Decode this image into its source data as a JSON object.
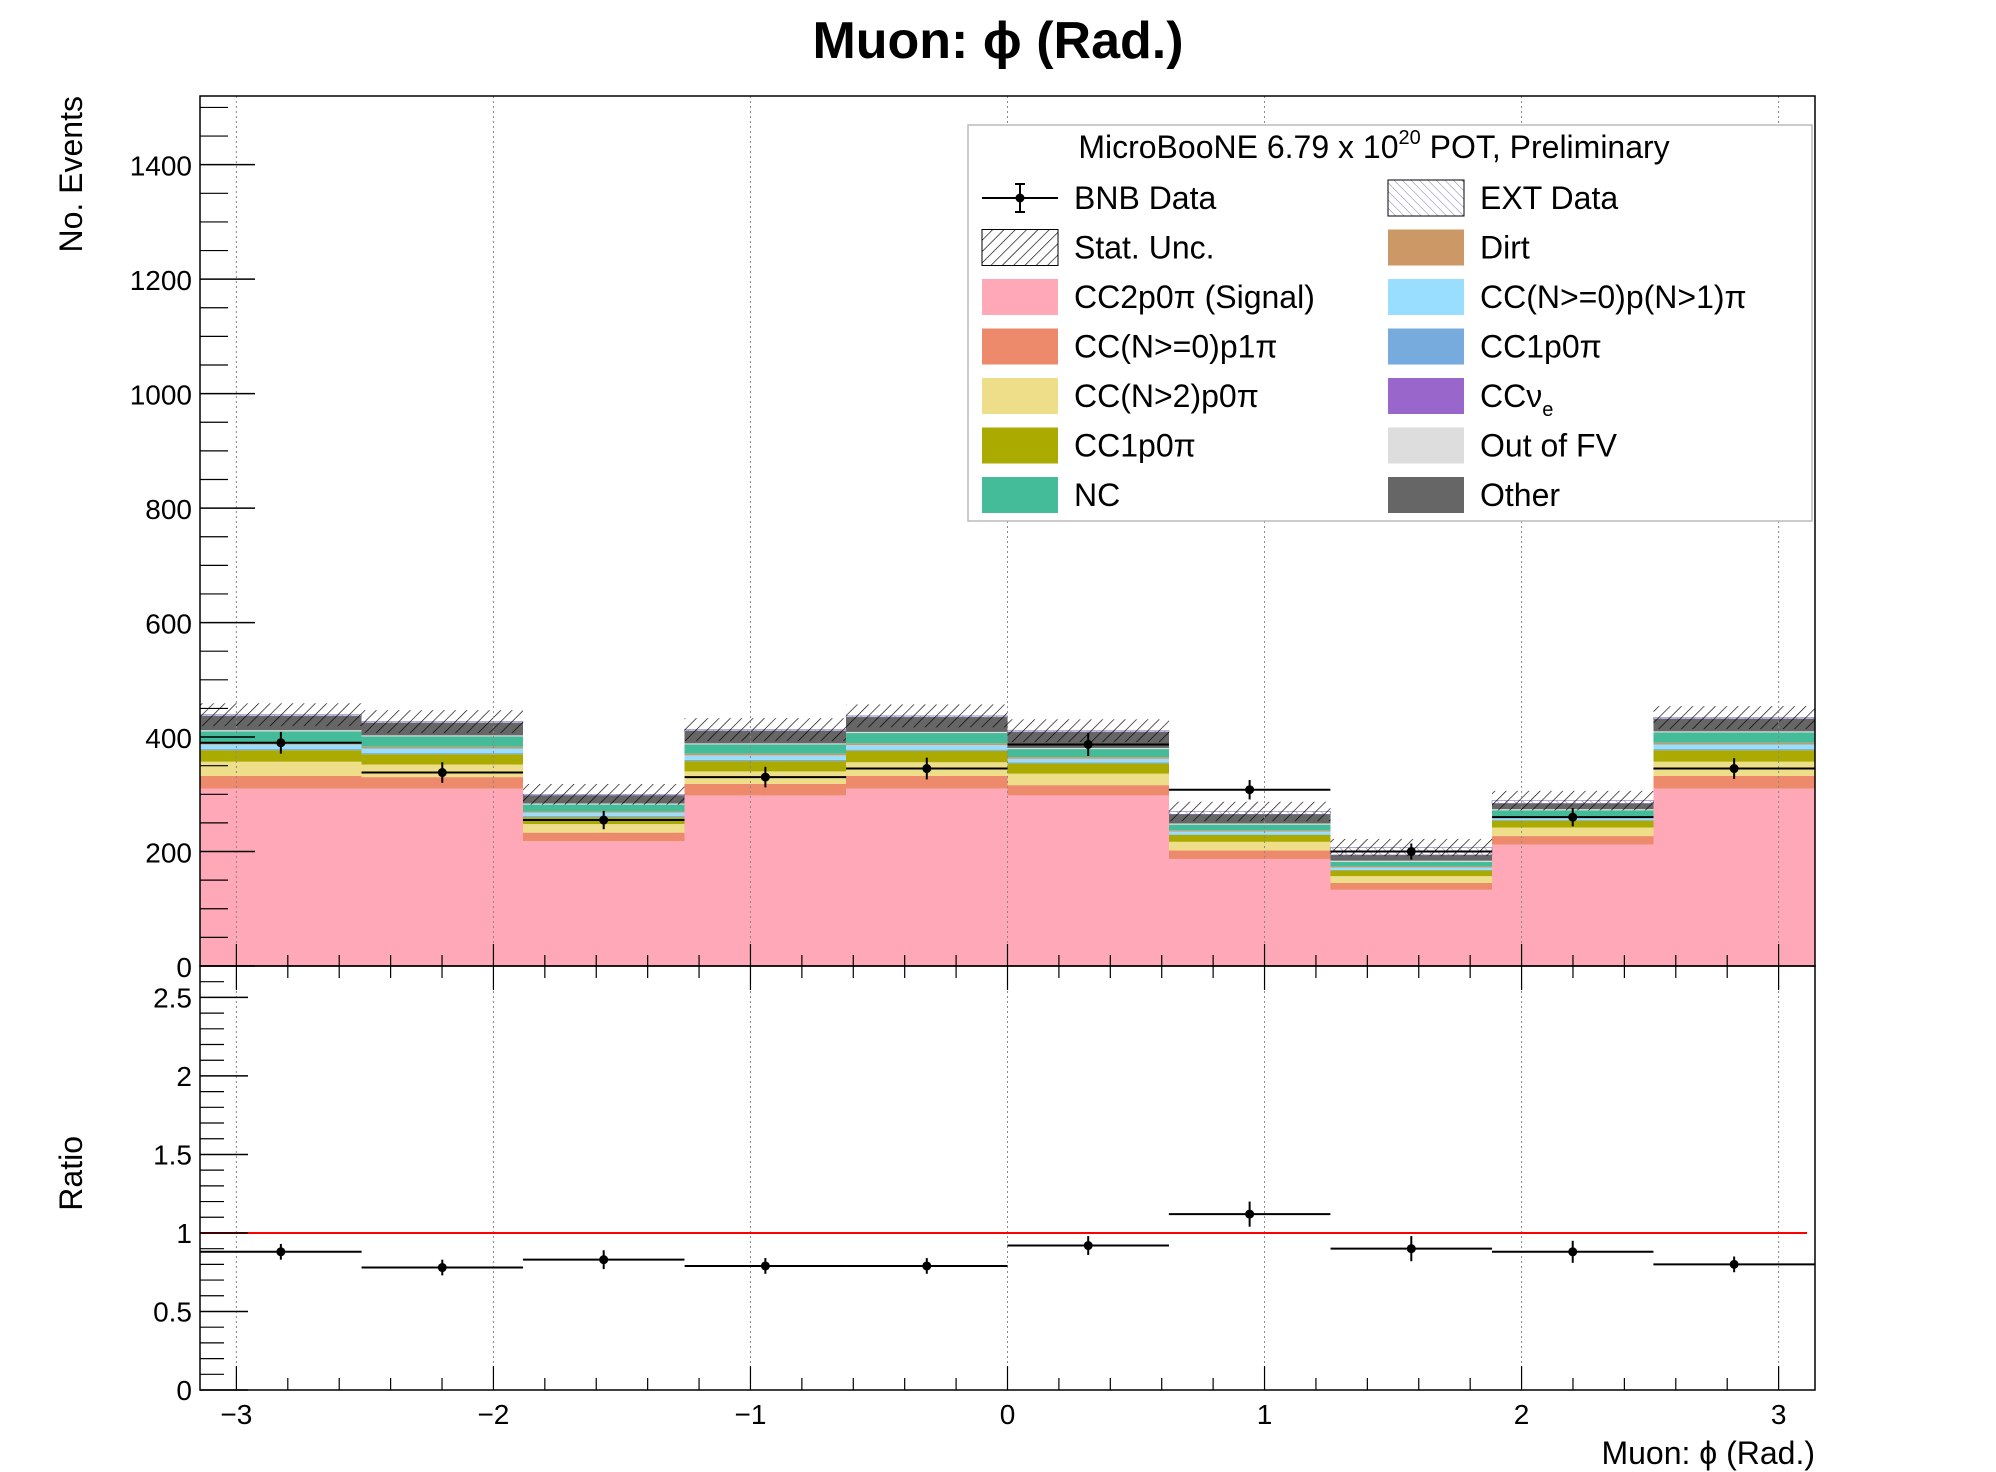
{
  "title": "Muon: ϕ (Rad.)",
  "legend": {
    "header": "MicroBooNE 6.79 x 10",
    "header_exp": "20",
    "header_tail": " POT, Preliminary",
    "entries": [
      {
        "key": "bnb",
        "label": "BNB Data"
      },
      {
        "key": "ext",
        "label": "EXT Data"
      },
      {
        "key": "stat",
        "label": "Stat. Unc."
      },
      {
        "key": "dirt",
        "label": "Dirt"
      },
      {
        "key": "cc2p0pi",
        "label": "CC2p0π (Signal)"
      },
      {
        "key": "ccnp1pi_multi",
        "label": "CC(N>=0)p(N>1)π"
      },
      {
        "key": "ccnp1pi",
        "label": "CC(N>=0)p1π"
      },
      {
        "key": "cc1p0pi_blue",
        "label": "CC1p0π"
      },
      {
        "key": "ccn2p0pi",
        "label": "CC(N>2)p0π"
      },
      {
        "key": "ccnue",
        "label": "CCν",
        "sub": "e"
      },
      {
        "key": "cc1p0pi_olive",
        "label": "CC1p0π"
      },
      {
        "key": "outfv",
        "label": "Out of FV"
      },
      {
        "key": "nc",
        "label": "NC"
      },
      {
        "key": "other",
        "label": "Other"
      }
    ]
  },
  "colors": {
    "cc2p0pi": "#FFA8B8",
    "ccnp1pi": "#EE8A6C",
    "ccn2p0pi": "#EEDE8A",
    "cc1p0pi_olive": "#AAAA00",
    "nc": "#44BB99",
    "dirt": "#CC9966",
    "ccnp1pi_multi": "#99DDFF",
    "cc1p0pi_blue": "#77AADD",
    "ccnue": "#9966CC",
    "outfv": "#DDDDDD",
    "other": "#666666",
    "ext_hatch": "#8070B0",
    "ratio_line": "#FF0000"
  },
  "chart_data": [
    {
      "type": "bar",
      "stacked": true,
      "title": "Muon: ϕ (Rad.)",
      "ylabel": "No. Events",
      "xlim": [
        -3.14159,
        3.14159
      ],
      "ylim": [
        0,
        1520
      ],
      "x_ticks": [
        -3,
        -2,
        -1,
        0,
        1,
        2,
        3
      ],
      "x_tick_labels": [
        "−3",
        "−2",
        "−1",
        "0",
        "1",
        "2",
        "3"
      ],
      "y_ticks": [
        0,
        200,
        400,
        600,
        800,
        1000,
        1200,
        1400
      ],
      "y_tick_labels": [
        "0",
        "200",
        "400",
        "600",
        "800",
        "1000",
        "1200",
        "1400"
      ],
      "grid_x": true,
      "legend_position": "top-right",
      "bin_edges": [
        -3.14159,
        -2.51327,
        -1.88496,
        -1.25664,
        -0.62832,
        0.0,
        0.62832,
        1.25664,
        1.88496,
        2.51327,
        3.14159
      ],
      "series": [
        {
          "key": "cc2p0pi",
          "values": [
            310,
            310,
            218,
            298,
            310,
            298,
            187,
            133,
            212,
            310
          ]
        },
        {
          "key": "ccnp1pi",
          "values": [
            22,
            20,
            15,
            20,
            22,
            18,
            15,
            12,
            15,
            22
          ]
        },
        {
          "key": "ccn2p0pi",
          "values": [
            25,
            22,
            15,
            22,
            24,
            20,
            15,
            12,
            15,
            25
          ]
        },
        {
          "key": "cc1p0pi_olive",
          "values": [
            20,
            18,
            12,
            18,
            20,
            18,
            12,
            10,
            12,
            20
          ]
        },
        {
          "key": "cc1p0pi_blue",
          "values": [
            2,
            2,
            2,
            2,
            2,
            2,
            1,
            1,
            1,
            2
          ]
        },
        {
          "key": "ccnp1pi_multi",
          "values": [
            8,
            8,
            6,
            8,
            8,
            6,
            5,
            4,
            5,
            8
          ]
        },
        {
          "key": "ccnue",
          "values": [
            0,
            0,
            0,
            0,
            0,
            0,
            0,
            0,
            0,
            0
          ]
        },
        {
          "key": "dirt",
          "values": [
            3,
            3,
            2,
            3,
            3,
            3,
            2,
            2,
            2,
            3
          ]
        },
        {
          "key": "nc",
          "values": [
            20,
            18,
            12,
            16,
            18,
            14,
            10,
            8,
            10,
            18
          ]
        },
        {
          "key": "outfv",
          "values": [
            2,
            2,
            2,
            2,
            2,
            2,
            2,
            2,
            2,
            2
          ]
        },
        {
          "key": "other",
          "values": [
            25,
            22,
            14,
            22,
            26,
            28,
            16,
            10,
            10,
            22
          ]
        }
      ],
      "ext_data": [
        2,
        2,
        2,
        2,
        2,
        2,
        5,
        13,
        5,
        2
      ],
      "stat_unc": [
        20,
        20,
        18,
        20,
        20,
        20,
        17,
        15,
        17,
        20
      ],
      "bnb_data": {
        "x": [
          -2.827,
          -2.199,
          -1.571,
          -0.942,
          -0.314,
          0.314,
          0.942,
          1.571,
          2.199,
          2.827
        ],
        "y": [
          390,
          338,
          255,
          330,
          345,
          387,
          308,
          200,
          260,
          345
        ],
        "err": [
          19,
          18,
          16,
          18,
          19,
          20,
          17,
          14,
          16,
          18
        ]
      }
    },
    {
      "type": "scatter",
      "ylabel": "Ratio",
      "xlabel": "Muon: ϕ (Rad.)",
      "xlim": [
        -3.14159,
        3.14159
      ],
      "ylim": [
        0,
        2.7
      ],
      "y_ticks": [
        0,
        0.5,
        1,
        1.5,
        2,
        2.5
      ],
      "y_tick_labels": [
        "0",
        "0.5",
        "1",
        "1.5",
        "2",
        "2.5"
      ],
      "reference_line": 1,
      "x": [
        -2.827,
        -2.199,
        -1.571,
        -0.942,
        -0.314,
        0.314,
        0.942,
        1.571,
        2.199,
        2.827
      ],
      "y": [
        0.88,
        0.78,
        0.83,
        0.79,
        0.79,
        0.92,
        1.12,
        0.9,
        0.88,
        0.8
      ],
      "err": [
        0.05,
        0.05,
        0.06,
        0.05,
        0.05,
        0.06,
        0.08,
        0.08,
        0.07,
        0.05
      ]
    }
  ]
}
